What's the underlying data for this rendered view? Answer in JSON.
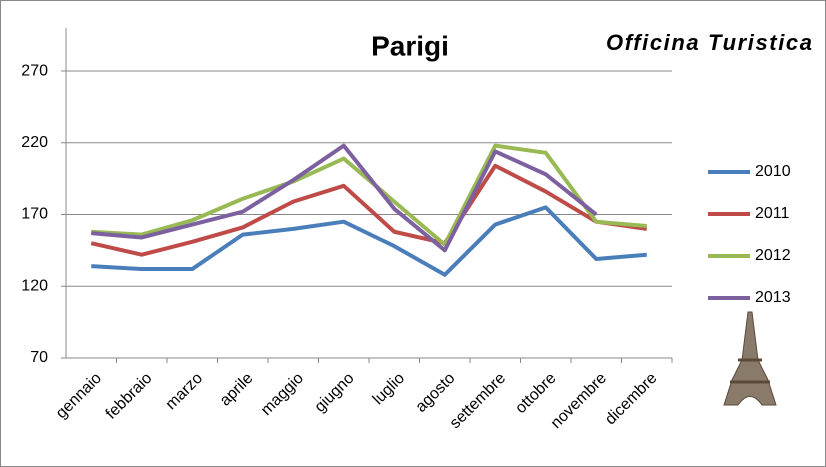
{
  "chart_data": {
    "type": "line",
    "title": "Parigi",
    "logo": "Officina Turistica",
    "categories": [
      "gennaio",
      "febbraio",
      "marzo",
      "aprile",
      "maggio",
      "giugno",
      "luglio",
      "agosto",
      "settembre",
      "ottobre",
      "novembre",
      "dicembre"
    ],
    "series": [
      {
        "name": "2010",
        "color": "#4a7ebb",
        "values": [
          134,
          132,
          132,
          156,
          160,
          165,
          148,
          128,
          163,
          175,
          139,
          142
        ]
      },
      {
        "name": "2011",
        "color": "#be4b48",
        "values": [
          150,
          142,
          151,
          161,
          179,
          190,
          158,
          150,
          204,
          186,
          165,
          160
        ]
      },
      {
        "name": "2012",
        "color": "#98b954",
        "values": [
          158,
          156,
          166,
          181,
          193,
          209,
          179,
          149,
          218,
          213,
          165,
          162
        ]
      },
      {
        "name": "2013",
        "color": "#7d60a0",
        "values": [
          157,
          154,
          163,
          172,
          194,
          218,
          174,
          145,
          214,
          198,
          170,
          null
        ]
      }
    ],
    "ylim": [
      70,
      300
    ],
    "yticks": [
      70,
      120,
      170,
      220,
      270
    ],
    "grid": true,
    "legend": "right"
  }
}
